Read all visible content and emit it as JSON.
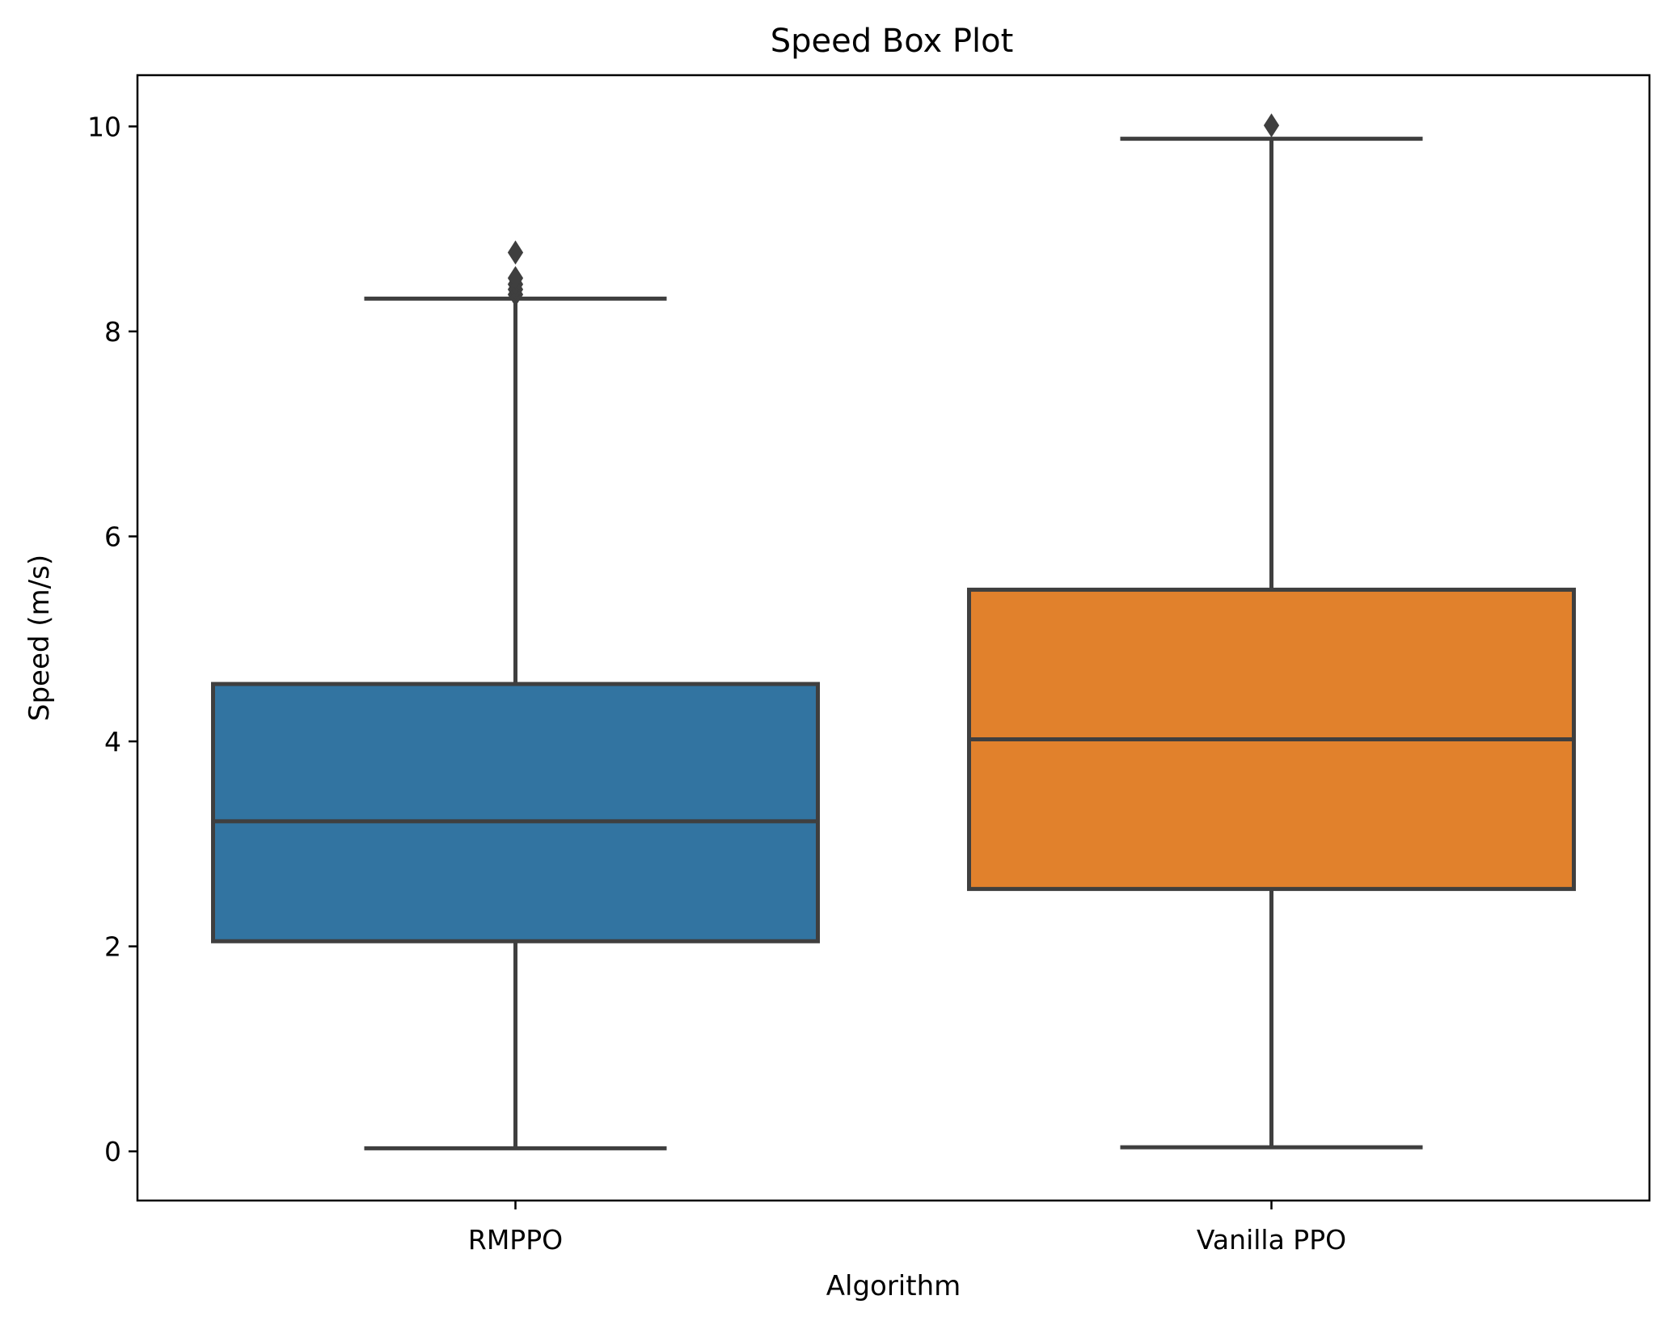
{
  "chart_data": {
    "type": "box",
    "title": "Speed Box Plot",
    "xlabel": "Algorithm",
    "ylabel": "Speed (m/s)",
    "ylim": [
      -0.48,
      10.5
    ],
    "yticks": [
      0,
      2,
      4,
      6,
      8,
      10
    ],
    "grid": false,
    "categories": [
      "RMPPO",
      "Vanilla PPO"
    ],
    "boxes": [
      {
        "name": "RMPPO",
        "color": "#3274a1",
        "whisker_low": 0.03,
        "q1": 2.05,
        "median": 3.22,
        "q3": 4.56,
        "whisker_high": 8.32,
        "outliers": [
          8.36,
          8.41,
          8.46,
          8.52,
          8.77
        ]
      },
      {
        "name": "Vanilla PPO",
        "color": "#e1812c",
        "whisker_low": 0.04,
        "q1": 2.56,
        "median": 4.02,
        "q3": 5.48,
        "whisker_high": 9.88,
        "outliers": [
          10.01
        ]
      }
    ]
  }
}
